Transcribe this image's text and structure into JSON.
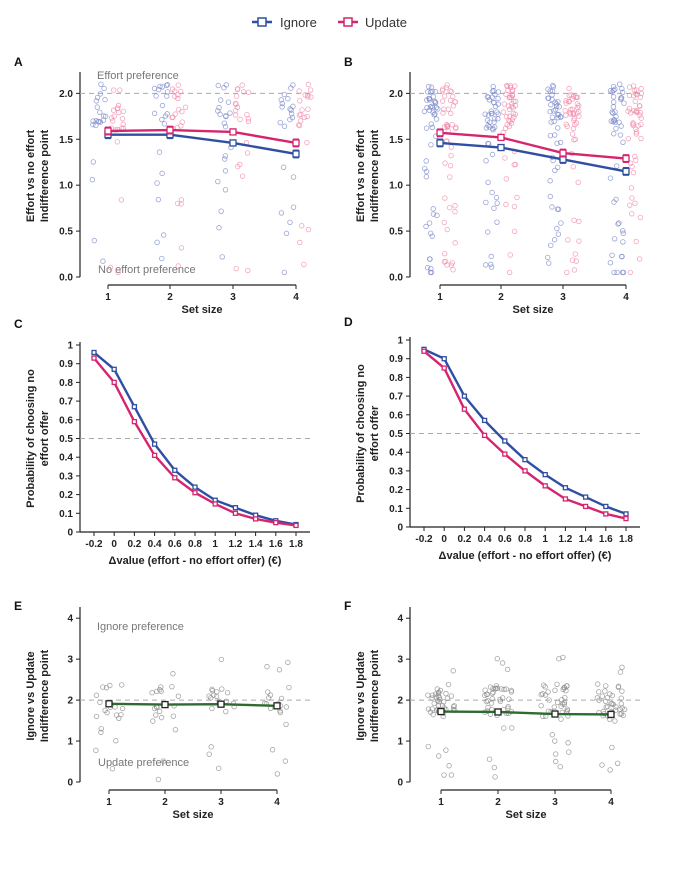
{
  "legend": {
    "ignore": "Ignore",
    "update": "Update",
    "colors": {
      "ignore": "#2f4fa2",
      "update": "#d6246e",
      "green": "#2e6b2e"
    }
  },
  "chart_data": [
    {
      "panel": "A",
      "type": "line",
      "x": [
        1,
        2,
        3,
        4
      ],
      "series": [
        {
          "name": "Ignore",
          "values": [
            1.55,
            1.55,
            1.46,
            1.34
          ],
          "errors": [
            0.04,
            0.04,
            0.03,
            0.04
          ]
        },
        {
          "name": "Update",
          "values": [
            1.59,
            1.6,
            1.58,
            1.46
          ],
          "errors": [
            0.04,
            0.04,
            0.03,
            0.04
          ]
        }
      ],
      "xlabel": "Set size",
      "ylabel": [
        "Effort vs no effort",
        "Indifference point"
      ],
      "yticks": [
        "0.0",
        "0.5",
        "1.0",
        "1.5",
        "2.0"
      ],
      "ylim": [
        0,
        2.2
      ],
      "xticks": [
        "1",
        "2",
        "3",
        "4"
      ],
      "ref_line": 2.0,
      "annotations": {
        "top": "Effort preference",
        "bottom": "No effort preference"
      }
    },
    {
      "panel": "B",
      "type": "line",
      "x": [
        1,
        2,
        3,
        4
      ],
      "series": [
        {
          "name": "Ignore",
          "values": [
            1.46,
            1.41,
            1.28,
            1.15
          ],
          "errors": [
            0.04,
            0.03,
            0.04,
            0.04
          ]
        },
        {
          "name": "Update",
          "values": [
            1.57,
            1.52,
            1.35,
            1.29
          ],
          "errors": [
            0.04,
            0.03,
            0.04,
            0.04
          ]
        }
      ],
      "xlabel": "Set size",
      "ylabel": [
        "Effort vs no effort",
        "Indifference point"
      ],
      "yticks": [
        "0.0",
        "0.5",
        "1.0",
        "1.5",
        "2.0"
      ],
      "ylim": [
        0,
        2.2
      ],
      "xticks": [
        "1",
        "2",
        "3",
        "4"
      ],
      "ref_line": 2.0
    },
    {
      "panel": "C",
      "type": "line",
      "x": [
        -0.2,
        0,
        0.2,
        0.4,
        0.6,
        0.8,
        1.0,
        1.2,
        1.4,
        1.6,
        1.8
      ],
      "series": [
        {
          "name": "Ignore",
          "values": [
            0.96,
            0.87,
            0.67,
            0.47,
            0.33,
            0.24,
            0.17,
            0.13,
            0.09,
            0.06,
            0.04
          ]
        },
        {
          "name": "Update",
          "values": [
            0.93,
            0.8,
            0.59,
            0.41,
            0.29,
            0.21,
            0.15,
            0.1,
            0.07,
            0.05,
            0.035
          ]
        }
      ],
      "xlabel": "Δvalue (effort - no effort offer) (€)",
      "ylabel": [
        "Probability of choosing no",
        "effort offer"
      ],
      "yticks": [
        "0",
        "0.1",
        "0.2",
        "0.3",
        "0.4",
        "0.5",
        "0.6",
        "0.7",
        "0.8",
        "0.9",
        "1"
      ],
      "ylim": [
        0,
        1
      ],
      "xticks": [
        "-0.2",
        "0",
        "0.2",
        "0.4",
        "0.6",
        "0.8",
        "1",
        "1.2",
        "1.4",
        "1.6",
        "1.8"
      ],
      "ref_line": 0.5
    },
    {
      "panel": "D",
      "type": "line",
      "x": [
        -0.2,
        0,
        0.2,
        0.4,
        0.6,
        0.8,
        1.0,
        1.2,
        1.4,
        1.6,
        1.8
      ],
      "series": [
        {
          "name": "Ignore",
          "values": [
            0.95,
            0.9,
            0.7,
            0.57,
            0.46,
            0.36,
            0.28,
            0.21,
            0.16,
            0.11,
            0.07
          ]
        },
        {
          "name": "Update",
          "values": [
            0.94,
            0.85,
            0.63,
            0.49,
            0.39,
            0.3,
            0.22,
            0.15,
            0.11,
            0.07,
            0.045
          ]
        }
      ],
      "xlabel": "Δvalue (effort - no effort offer) (€)",
      "ylabel": [
        "Probability of choosing no",
        "effort offer"
      ],
      "yticks": [
        "0",
        "0.1",
        "0.2",
        "0.3",
        "0.4",
        "0.5",
        "0.6",
        "0.7",
        "0.8",
        "0.9",
        "1"
      ],
      "ylim": [
        0,
        1
      ],
      "xticks": [
        "-0.2",
        "0",
        "0.2",
        "0.4",
        "0.6",
        "0.8",
        "1",
        "1.2",
        "1.4",
        "1.6",
        "1.8"
      ],
      "ref_line": 0.5
    },
    {
      "panel": "E",
      "type": "line",
      "x": [
        1,
        2,
        3,
        4
      ],
      "series": [
        {
          "name": "Ignore vs Update",
          "values": [
            1.91,
            1.89,
            1.9,
            1.86
          ],
          "errors": [
            0.05,
            0.05,
            0.05,
            0.05
          ]
        }
      ],
      "xlabel": "Set size",
      "ylabel": [
        "Ignore vs Update",
        "Indifference point"
      ],
      "yticks": [
        "0",
        "1",
        "2",
        "3",
        "4"
      ],
      "ylim": [
        0,
        4.2
      ],
      "xticks": [
        "1",
        "2",
        "3",
        "4"
      ],
      "ref_line": 2.0,
      "annotations": {
        "top": "Ignore preference",
        "bottom": "Update preference"
      }
    },
    {
      "panel": "F",
      "type": "line",
      "x": [
        1,
        2,
        3,
        4
      ],
      "series": [
        {
          "name": "Ignore vs Update",
          "values": [
            1.72,
            1.71,
            1.66,
            1.65
          ],
          "errors": [
            0.05,
            0.05,
            0.05,
            0.05
          ]
        }
      ],
      "xlabel": "Set size",
      "ylabel": [
        "Ignore vs Update",
        "Indifference point"
      ],
      "yticks": [
        "0",
        "1",
        "2",
        "3",
        "4"
      ],
      "ylim": [
        0,
        4.2
      ],
      "xticks": [
        "1",
        "2",
        "3",
        "4"
      ],
      "ref_line": 2.0
    }
  ]
}
